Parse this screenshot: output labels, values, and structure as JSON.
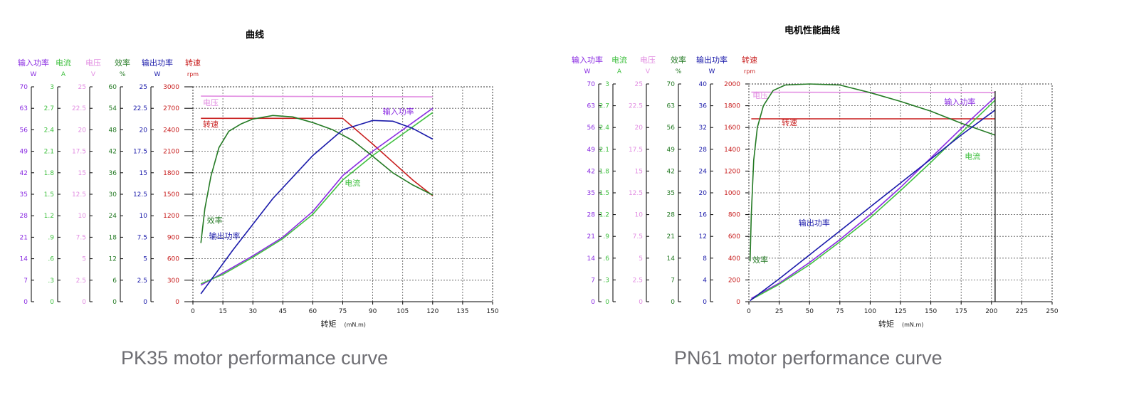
{
  "colors": {
    "input_power": "#8a2be2",
    "current": "#40c040",
    "voltage": "#e28ee2",
    "efficiency": "#247a24",
    "output_power": "#1a1aaa",
    "speed": "#c81e1e",
    "grid": "#555555"
  },
  "chart_data": [
    {
      "type": "line",
      "title": "曲线",
      "caption": "PK35 motor performance curve",
      "xlabel": "转矩",
      "xunit": "(mN.m)",
      "xlim": [
        0,
        150
      ],
      "xticks": [
        "0",
        "15",
        "30",
        "45",
        "60",
        "75",
        "90",
        "105",
        "120",
        "135",
        "150"
      ],
      "axes": [
        {
          "key": "input_power",
          "name": "输入功率",
          "unit": "W",
          "ticks": [
            "0",
            "7",
            "14",
            "21",
            "28",
            "35",
            "42",
            "49",
            "56",
            "63",
            "70"
          ]
        },
        {
          "key": "current",
          "name": "电流",
          "unit": "A",
          "ticks": [
            "0",
            ".3",
            ".6",
            ".9",
            "1.2",
            "1.5",
            "1.8",
            "2.1",
            "2.4",
            "2.7",
            "3"
          ]
        },
        {
          "key": "voltage",
          "name": "电压",
          "unit": "V",
          "ticks": [
            "0",
            "2.5",
            "5",
            "7.5",
            "10",
            "12.5",
            "15",
            "17.5",
            "20",
            "22.5",
            "25"
          ]
        },
        {
          "key": "efficiency",
          "name": "效率",
          "unit": "%",
          "ticks": [
            "0",
            "6",
            "12",
            "18",
            "24",
            "30",
            "36",
            "42",
            "48",
            "54",
            "60"
          ]
        },
        {
          "key": "output_power",
          "name": "输出功率",
          "unit": "W",
          "ticks": [
            "0",
            "2.5",
            "5",
            "7.5",
            "10",
            "12.5",
            "15",
            "17.5",
            "20",
            "22.5",
            "25"
          ]
        },
        {
          "key": "speed",
          "name": "转速",
          "unit": "rpm",
          "ticks": [
            "0",
            "300",
            "600",
            "900",
            "1200",
            "1500",
            "1800",
            "2100",
            "2400",
            "2700",
            "3000"
          ]
        }
      ],
      "series": [
        {
          "key": "voltage",
          "name": "电压",
          "label_at": [
            5,
            2740
          ],
          "points": [
            [
              4,
              2870
            ],
            [
              120,
              2860
            ]
          ]
        },
        {
          "key": "speed",
          "name": "转速",
          "label_at": [
            5,
            2440
          ],
          "points": [
            [
              4,
              2560
            ],
            [
              75,
              2560
            ],
            [
              80,
              2440
            ],
            [
              90,
              2200
            ],
            [
              100,
              1950
            ],
            [
              110,
              1700
            ],
            [
              120,
              1480
            ]
          ]
        },
        {
          "key": "input_power",
          "name": "输入功率",
          "label_at": [
            95,
            2620
          ],
          "points": [
            [
              4,
              230
            ],
            [
              15,
              400
            ],
            [
              30,
              640
            ],
            [
              45,
              900
            ],
            [
              60,
              1260
            ],
            [
              75,
              1760
            ],
            [
              90,
              2100
            ],
            [
              105,
              2400
            ],
            [
              120,
              2700
            ]
          ]
        },
        {
          "key": "current",
          "name": "电流",
          "label_at": [
            76,
            1620
          ],
          "points": [
            [
              4,
              250
            ],
            [
              15,
              380
            ],
            [
              30,
              620
            ],
            [
              45,
              880
            ],
            [
              60,
              1220
            ],
            [
              75,
              1700
            ],
            [
              90,
              2040
            ],
            [
              105,
              2340
            ],
            [
              120,
              2640
            ]
          ]
        },
        {
          "key": "efficiency",
          "name": "效率",
          "label_at": [
            7,
            1100
          ],
          "points": [
            [
              4,
              820
            ],
            [
              6,
              1300
            ],
            [
              9,
              1750
            ],
            [
              13,
              2150
            ],
            [
              18,
              2380
            ],
            [
              24,
              2480
            ],
            [
              30,
              2550
            ],
            [
              40,
              2600
            ],
            [
              50,
              2580
            ],
            [
              60,
              2500
            ],
            [
              70,
              2400
            ],
            [
              80,
              2250
            ],
            [
              90,
              2030
            ],
            [
              100,
              1800
            ],
            [
              110,
              1630
            ],
            [
              120,
              1490
            ]
          ]
        },
        {
          "key": "output_power",
          "name": "输出功率",
          "label_at": [
            8,
            880
          ],
          "points": [
            [
              4,
              110
            ],
            [
              20,
              720
            ],
            [
              40,
              1440
            ],
            [
              60,
              2040
            ],
            [
              75,
              2400
            ],
            [
              90,
              2530
            ],
            [
              100,
              2520
            ],
            [
              110,
              2420
            ],
            [
              120,
              2270
            ]
          ]
        }
      ]
    },
    {
      "type": "line",
      "title": "电机性能曲线",
      "caption": "PN61 motor performance curve",
      "xlabel": "转矩",
      "xunit": "(mN.m)",
      "xlim": [
        0,
        250
      ],
      "xticks": [
        "0",
        "25",
        "50",
        "75",
        "100",
        "125",
        "150",
        "175",
        "200",
        "225",
        "250"
      ],
      "axes": [
        {
          "key": "input_power",
          "name": "输入功率",
          "unit": "W",
          "ticks": [
            "0",
            "7",
            "14",
            "21",
            "28",
            "35",
            "42",
            "49",
            "56",
            "63",
            "70"
          ]
        },
        {
          "key": "current",
          "name": "电流",
          "unit": "A",
          "ticks": [
            "0",
            ".3",
            ".6",
            ".9",
            "1.2",
            "1.5",
            "1.8",
            "2.1",
            "2.4",
            "2.7",
            "3"
          ]
        },
        {
          "key": "voltage",
          "name": "电压",
          "unit": "V",
          "ticks": [
            "0",
            "2.5",
            "5",
            "7.5",
            "10",
            "12.5",
            "15",
            "17.5",
            "20",
            "22.5",
            "25"
          ]
        },
        {
          "key": "efficiency",
          "name": "效率",
          "unit": "%",
          "ticks": [
            "0",
            "7",
            "14",
            "21",
            "28",
            "35",
            "42",
            "49",
            "56",
            "63",
            "70"
          ]
        },
        {
          "key": "output_power",
          "name": "输出功率",
          "unit": "W",
          "ticks": [
            "0",
            "4",
            "8",
            "12",
            "16",
            "20",
            "24",
            "28",
            "32",
            "36",
            "40"
          ]
        },
        {
          "key": "speed",
          "name": "转速",
          "unit": "rpm",
          "ticks": [
            "0",
            "200",
            "400",
            "600",
            "800",
            "1000",
            "1200",
            "1400",
            "1600",
            "1800",
            "2000"
          ]
        }
      ],
      "series": [
        {
          "key": "voltage",
          "name": "电压",
          "label_at": [
            3,
            1870
          ],
          "points": [
            [
              2,
              1925
            ],
            [
              203,
              1920
            ]
          ]
        },
        {
          "key": "speed",
          "name": "转速",
          "label_at": [
            27,
            1620
          ],
          "points": [
            [
              2,
              1680
            ],
            [
              203,
              1680
            ]
          ]
        },
        {
          "key": "input_power",
          "name": "输入功率",
          "label_at": [
            161,
            1810
          ],
          "points": [
            [
              2,
              30
            ],
            [
              25,
              170
            ],
            [
              50,
              360
            ],
            [
              75,
              570
            ],
            [
              100,
              800
            ],
            [
              125,
              1050
            ],
            [
              150,
              1320
            ],
            [
              175,
              1590
            ],
            [
              203,
              1880
            ]
          ]
        },
        {
          "key": "current",
          "name": "电流",
          "label_at": [
            178,
            1310
          ],
          "points": [
            [
              2,
              20
            ],
            [
              25,
              160
            ],
            [
              50,
              340
            ],
            [
              75,
              550
            ],
            [
              100,
              770
            ],
            [
              125,
              1020
            ],
            [
              150,
              1280
            ],
            [
              175,
              1550
            ],
            [
              203,
              1850
            ]
          ]
        },
        {
          "key": "efficiency",
          "name": "效率",
          "label_at": [
            3,
            360
          ],
          "points": [
            [
              1,
              370
            ],
            [
              2,
              800
            ],
            [
              4,
              1300
            ],
            [
              7,
              1600
            ],
            [
              12,
              1800
            ],
            [
              20,
              1940
            ],
            [
              30,
              1990
            ],
            [
              50,
              2000
            ],
            [
              75,
              1990
            ],
            [
              100,
              1920
            ],
            [
              125,
              1840
            ],
            [
              150,
              1750
            ],
            [
              175,
              1640
            ],
            [
              203,
              1530
            ]
          ]
        },
        {
          "key": "output_power",
          "name": "输出功率",
          "label_at": [
            41,
            700
          ],
          "points": [
            [
              1,
              10
            ],
            [
              25,
              210
            ],
            [
              50,
              430
            ],
            [
              75,
              650
            ],
            [
              100,
              870
            ],
            [
              125,
              1090
            ],
            [
              150,
              1310
            ],
            [
              175,
              1530
            ],
            [
              203,
              1760
            ]
          ]
        }
      ]
    }
  ]
}
